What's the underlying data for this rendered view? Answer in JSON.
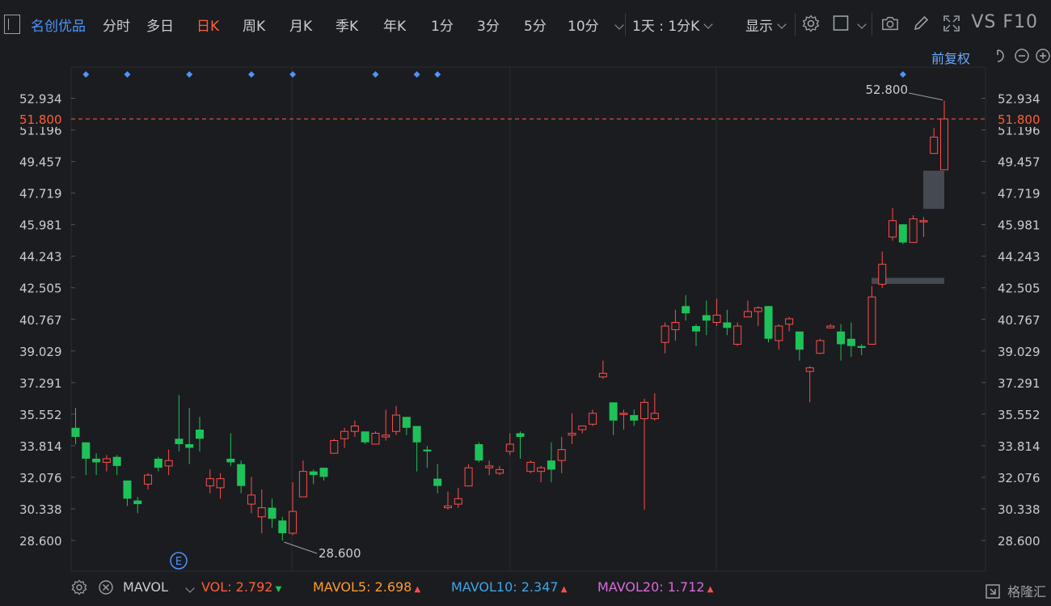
{
  "toolbar": {
    "stock_name": "名创优品",
    "tabs": [
      "分时",
      "多日",
      "日K",
      "周K",
      "月K",
      "季K",
      "年K",
      "1分",
      "3分",
      "5分",
      "10分"
    ],
    "active_tab": "日K",
    "period_select": "1天 : 1分K",
    "display_label": "显示",
    "brand": "VS F10"
  },
  "adjust_label": "前复权",
  "volume_bar": {
    "indicator": "MAVOL",
    "items": [
      {
        "label": "VOL:",
        "value": "2.792",
        "dir": "down",
        "label_color": "#ff5e3a",
        "value_color": "#ff5e3a"
      },
      {
        "label": "MAVOL5:",
        "value": "2.698",
        "dir": "up",
        "label_color": "#ff9a2e",
        "value_color": "#ff9a2e"
      },
      {
        "label": "MAVOL10:",
        "value": "2.347",
        "dir": "up",
        "label_color": "#3fa6e8",
        "value_color": "#3fa6e8"
      },
      {
        "label": "MAVOL20:",
        "value": "1.712",
        "dir": "up",
        "label_color": "#d86bd8",
        "value_color": "#d86bd8"
      }
    ]
  },
  "watermark": "格隆汇",
  "chart_data": {
    "type": "candlestick",
    "y_ticks": [
      52.934,
      51.196,
      49.457,
      47.719,
      45.981,
      44.243,
      42.505,
      40.767,
      39.029,
      37.291,
      35.552,
      33.814,
      32.076,
      30.338,
      28.6
    ],
    "ylim": [
      27.9,
      53.9
    ],
    "current_price": 51.8,
    "max_label": "52.800",
    "min_label": "28.600",
    "event_marker": "E",
    "colors": {
      "up": "#ff4d4d",
      "down": "#1ec25a",
      "grid": "#2b2d31",
      "axis_text": "#c9ccd2",
      "current": "#ff5e3a"
    },
    "candles": [
      [
        34.8,
        34.3,
        35.9,
        33.9
      ],
      [
        34.0,
        33.1,
        34.0,
        32.2
      ],
      [
        33.1,
        32.9,
        33.4,
        32.2
      ],
      [
        32.9,
        33.1,
        33.3,
        32.4
      ],
      [
        33.2,
        32.7,
        33.3,
        32.2
      ],
      [
        31.9,
        30.9,
        31.9,
        30.5
      ],
      [
        30.8,
        30.6,
        31.0,
        30.1
      ],
      [
        31.7,
        32.2,
        32.3,
        31.4
      ],
      [
        33.1,
        32.6,
        33.2,
        32.4
      ],
      [
        32.7,
        33.0,
        33.6,
        32.2
      ],
      [
        34.2,
        33.9,
        36.6,
        33.5
      ],
      [
        33.9,
        33.7,
        35.9,
        32.8
      ],
      [
        34.7,
        34.2,
        35.4,
        33.5
      ],
      [
        31.6,
        32.0,
        32.5,
        31.2
      ],
      [
        31.5,
        32.0,
        32.3,
        30.9
      ],
      [
        33.1,
        32.9,
        34.5,
        32.7
      ],
      [
        32.8,
        31.6,
        33.0,
        31.2
      ],
      [
        30.6,
        31.1,
        32.1,
        30.1
      ],
      [
        29.9,
        30.4,
        31.4,
        29.0
      ],
      [
        30.4,
        29.8,
        30.9,
        29.3
      ],
      [
        29.7,
        29.0,
        29.9,
        28.6
      ],
      [
        29.0,
        30.2,
        31.8,
        28.9
      ],
      [
        31.0,
        32.4,
        33.0,
        31.0
      ],
      [
        32.4,
        32.2,
        32.5,
        31.7
      ],
      [
        32.6,
        32.1,
        32.6,
        31.9
      ],
      [
        33.4,
        34.1,
        34.2,
        33.4
      ],
      [
        34.2,
        34.6,
        34.8,
        33.7
      ],
      [
        34.6,
        34.9,
        35.2,
        34.3
      ],
      [
        34.6,
        34.0,
        34.6,
        33.9
      ],
      [
        33.9,
        34.5,
        34.6,
        33.9
      ],
      [
        34.3,
        34.4,
        35.8,
        34.1
      ],
      [
        34.6,
        35.5,
        36.0,
        34.4
      ],
      [
        35.4,
        34.8,
        35.4,
        34.4
      ],
      [
        34.9,
        34.0,
        34.9,
        32.4
      ],
      [
        33.6,
        33.5,
        33.8,
        32.6
      ],
      [
        32.0,
        31.6,
        32.8,
        31.2
      ],
      [
        30.4,
        30.5,
        31.3,
        30.3
      ],
      [
        30.6,
        30.9,
        31.5,
        30.4
      ],
      [
        31.6,
        32.6,
        32.8,
        31.6
      ],
      [
        33.9,
        33.0,
        34.0,
        32.9
      ],
      [
        32.6,
        32.7,
        33.0,
        32.2
      ],
      [
        32.3,
        32.5,
        32.7,
        32.2
      ],
      [
        33.5,
        33.9,
        34.5,
        33.3
      ],
      [
        34.5,
        34.3,
        34.6,
        33.1
      ],
      [
        32.4,
        32.9,
        33.0,
        32.3
      ],
      [
        32.4,
        32.6,
        32.7,
        31.8
      ],
      [
        33.0,
        32.5,
        34.0,
        31.8
      ],
      [
        33.0,
        33.6,
        34.3,
        32.3
      ],
      [
        34.4,
        34.5,
        35.6,
        33.9
      ],
      [
        34.7,
        34.9,
        34.9,
        34.5
      ],
      [
        35.0,
        35.6,
        35.8,
        34.9
      ],
      [
        37.6,
        37.8,
        38.5,
        37.5
      ],
      [
        36.2,
        35.2,
        36.2,
        34.4
      ],
      [
        35.6,
        35.6,
        35.8,
        34.7
      ],
      [
        35.5,
        35.2,
        35.8,
        34.9
      ],
      [
        35.3,
        36.2,
        36.4,
        30.3
      ],
      [
        35.3,
        35.6,
        36.7,
        35.2
      ],
      [
        39.5,
        40.4,
        40.6,
        38.9
      ],
      [
        40.2,
        40.6,
        41.3,
        39.6
      ],
      [
        41.5,
        41.1,
        42.1,
        40.7
      ],
      [
        40.4,
        40.1,
        40.5,
        39.3
      ],
      [
        41.0,
        40.7,
        41.8,
        39.9
      ],
      [
        40.6,
        41.0,
        41.9,
        40.4
      ],
      [
        40.6,
        40.3,
        41.3,
        39.9
      ],
      [
        39.4,
        40.4,
        40.6,
        39.3
      ],
      [
        40.9,
        41.2,
        41.8,
        40.9
      ],
      [
        41.2,
        41.4,
        41.5,
        40.4
      ],
      [
        41.5,
        39.7,
        41.5,
        39.5
      ],
      [
        39.6,
        40.4,
        40.5,
        39.1
      ],
      [
        40.5,
        40.8,
        40.9,
        40.1
      ],
      [
        40.1,
        39.1,
        40.1,
        38.5
      ],
      [
        37.9,
        38.1,
        38.2,
        36.2
      ],
      [
        38.9,
        39.6,
        39.7,
        38.9
      ],
      [
        40.3,
        40.4,
        40.5,
        40.3
      ],
      [
        40.1,
        39.4,
        40.5,
        38.5
      ],
      [
        39.7,
        39.3,
        40.6,
        38.7
      ],
      [
        39.3,
        39.2,
        39.4,
        38.8
      ],
      [
        39.4,
        42.0,
        42.6,
        39.4
      ],
      [
        42.7,
        43.8,
        44.5,
        42.5
      ],
      [
        45.3,
        46.2,
        46.9,
        45.1
      ],
      [
        46.0,
        45.0,
        46.0,
        44.9
      ],
      [
        45.0,
        46.3,
        46.5,
        45.0
      ],
      [
        46.2,
        46.2,
        46.4,
        45.3
      ],
      [
        49.9,
        50.8,
        51.3,
        49.9
      ],
      [
        49.0,
        51.8,
        52.8,
        49.0
      ]
    ],
    "gap_zones": [
      [
        43.05,
        42.72
      ],
      [
        48.95,
        46.85
      ]
    ],
    "event_dots_at": [
      1,
      5,
      11,
      17,
      21,
      29,
      33,
      35,
      80
    ]
  }
}
